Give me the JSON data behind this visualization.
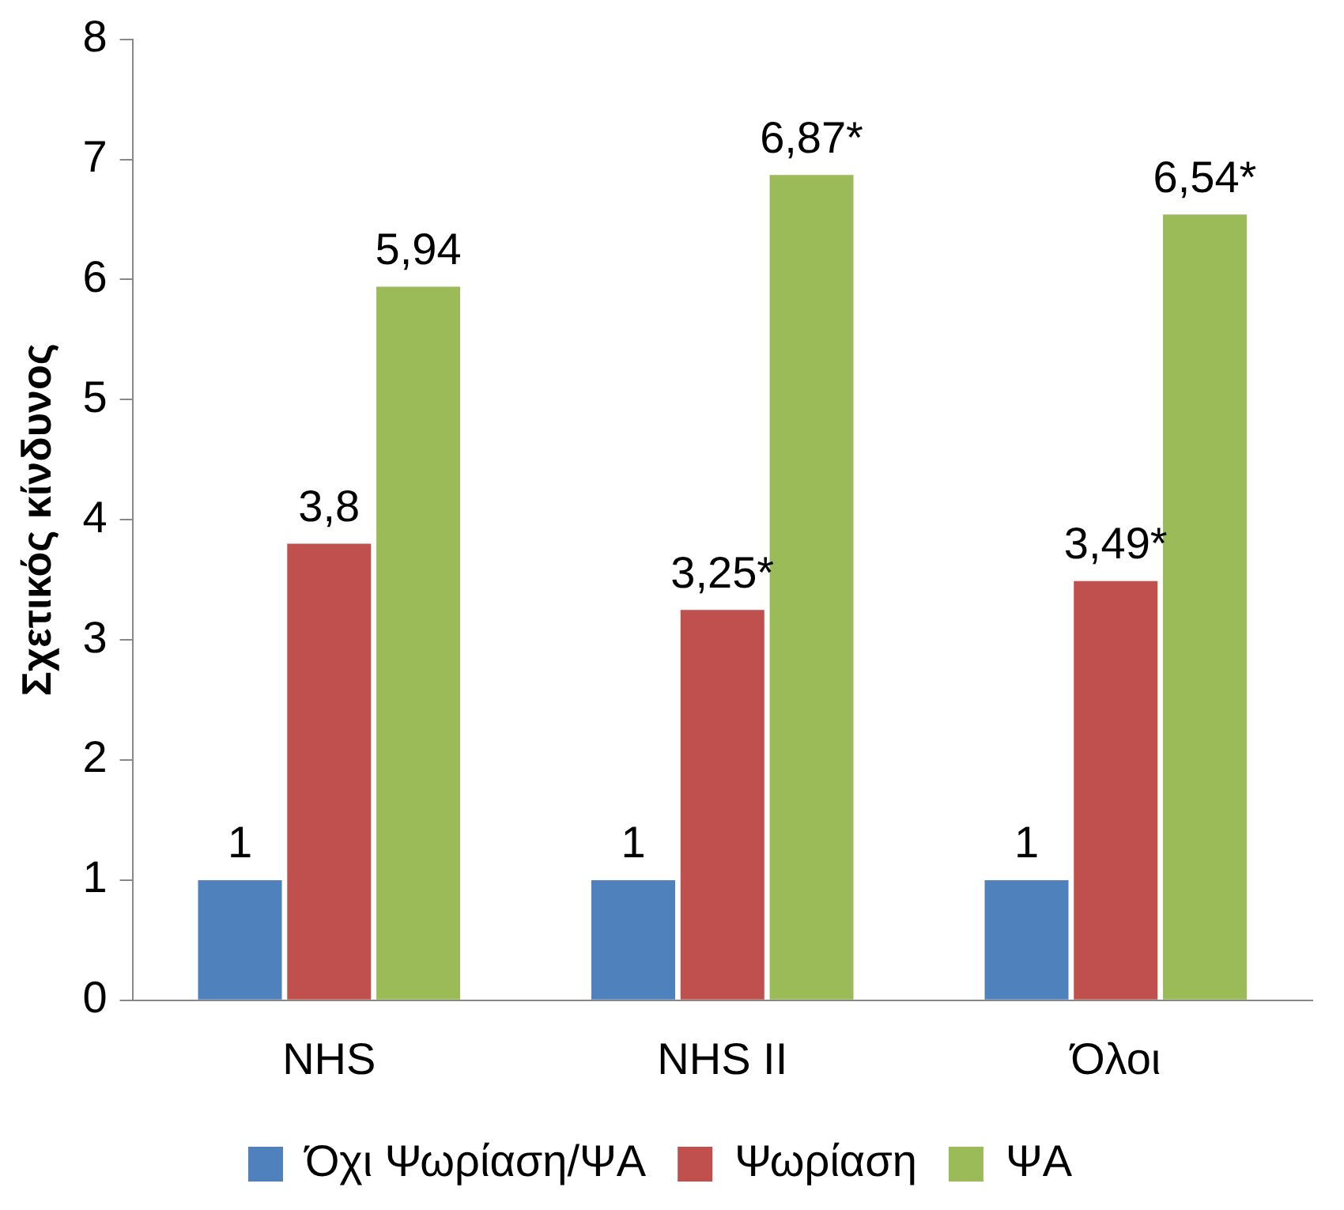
{
  "chart_data": {
    "type": "bar",
    "ylabel": "Σχετικός κίνδυνος",
    "categories": [
      "NHS",
      "NHS II",
      "Όλοι"
    ],
    "series": [
      {
        "name": "Όχι Ψωρίαση/ΨΑ",
        "color": "#4f81bd",
        "values": [
          1,
          1,
          1
        ],
        "value_labels": [
          "1",
          "1",
          "1"
        ]
      },
      {
        "name": "Ψωρίαση",
        "color": "#c0504d",
        "values": [
          3.8,
          3.25,
          3.49
        ],
        "value_labels": [
          "3,8",
          "3,25*",
          "3,49*"
        ]
      },
      {
        "name": "ΨΑ",
        "color": "#9bbb59",
        "values": [
          5.94,
          6.87,
          6.54
        ],
        "value_labels": [
          "5,94",
          "6,87*",
          "6,54*"
        ]
      }
    ],
    "ylim": [
      0,
      8
    ],
    "yticks": [
      0,
      1,
      2,
      3,
      4,
      5,
      6,
      7,
      8
    ],
    "grid": false,
    "legend": "bottom"
  }
}
